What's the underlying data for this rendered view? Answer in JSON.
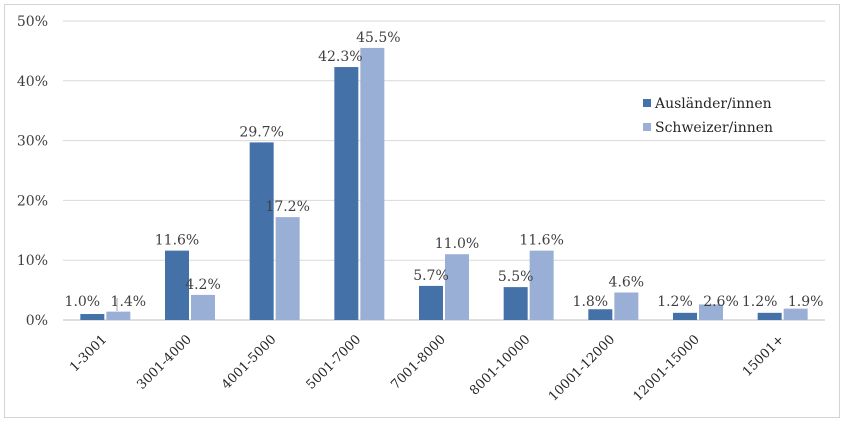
{
  "chart_data": {
    "type": "bar",
    "title": "",
    "xlabel": "",
    "ylabel": "",
    "ylim": [
      0,
      50
    ],
    "yticks": [
      "0%",
      "10%",
      "20%",
      "30%",
      "40%",
      "50%"
    ],
    "categories": [
      "1-3001",
      "3001-4000",
      "4001-5000",
      "5001-7000",
      "7001-8000",
      "8001-10000",
      "10001-12000",
      "12001-15000",
      "15001+"
    ],
    "series": [
      {
        "name": "Ausländer/innen",
        "color": "#4472a8",
        "values": [
          1.0,
          11.6,
          29.7,
          42.3,
          5.7,
          5.5,
          1.8,
          1.2,
          1.2
        ],
        "labels": [
          "1.0%",
          "11.6%",
          "29.7%",
          "42.3%",
          "5.7%",
          "5.5%",
          "1.8%",
          "1.2%",
          "1.2%"
        ]
      },
      {
        "name": "Schweizer/innen",
        "color": "#9aafd6",
        "values": [
          1.4,
          4.2,
          17.2,
          45.5,
          11.0,
          11.6,
          4.6,
          2.6,
          1.9
        ],
        "labels": [
          "1.4%",
          "4.2%",
          "17.2%",
          "45.5%",
          "11.0%",
          "11.6%",
          "4.6%",
          "2.6%",
          "1.9%"
        ]
      }
    ],
    "grid": true,
    "legend": "right"
  }
}
